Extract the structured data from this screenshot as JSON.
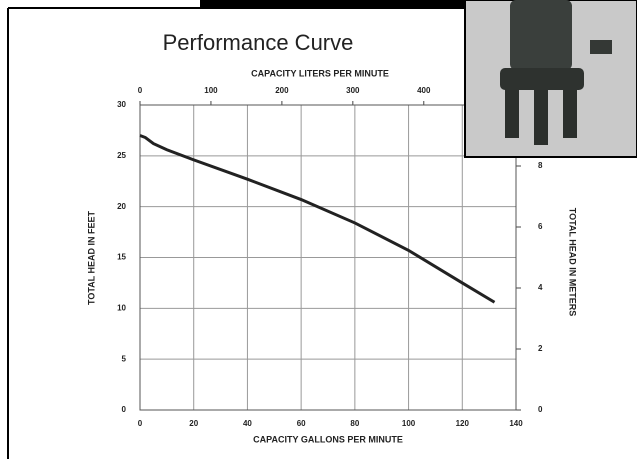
{
  "chart_data": {
    "type": "line",
    "title": "Performance Curve",
    "x_label": "CAPACITY GALLONS PER MINUTE",
    "x2_label": "CAPACITY LITERS PER MINUTE",
    "y_label": "TOTAL HEAD IN FEET",
    "y2_label": "TOTAL HEAD IN METERS",
    "x": [
      0,
      2,
      5,
      10,
      20,
      40,
      60,
      80,
      100,
      120,
      132
    ],
    "values": [
      27,
      26.8,
      26.2,
      25.6,
      24.6,
      22.7,
      20.7,
      18.4,
      15.7,
      12.5,
      10.6
    ],
    "color": "#222222",
    "xlim": [
      0,
      140
    ],
    "xticks": [
      0,
      20,
      40,
      60,
      80,
      100,
      120,
      140
    ],
    "x2lim": [
      0,
      530
    ],
    "x2ticks": [
      0,
      100,
      200,
      300,
      400
    ],
    "ylim": [
      0,
      30
    ],
    "yticks": [
      0,
      5,
      10,
      15,
      20,
      25,
      30
    ],
    "y2lim": [
      0,
      10
    ],
    "y2ticks": [
      0,
      2,
      4,
      6,
      8
    ],
    "grid": true
  }
}
